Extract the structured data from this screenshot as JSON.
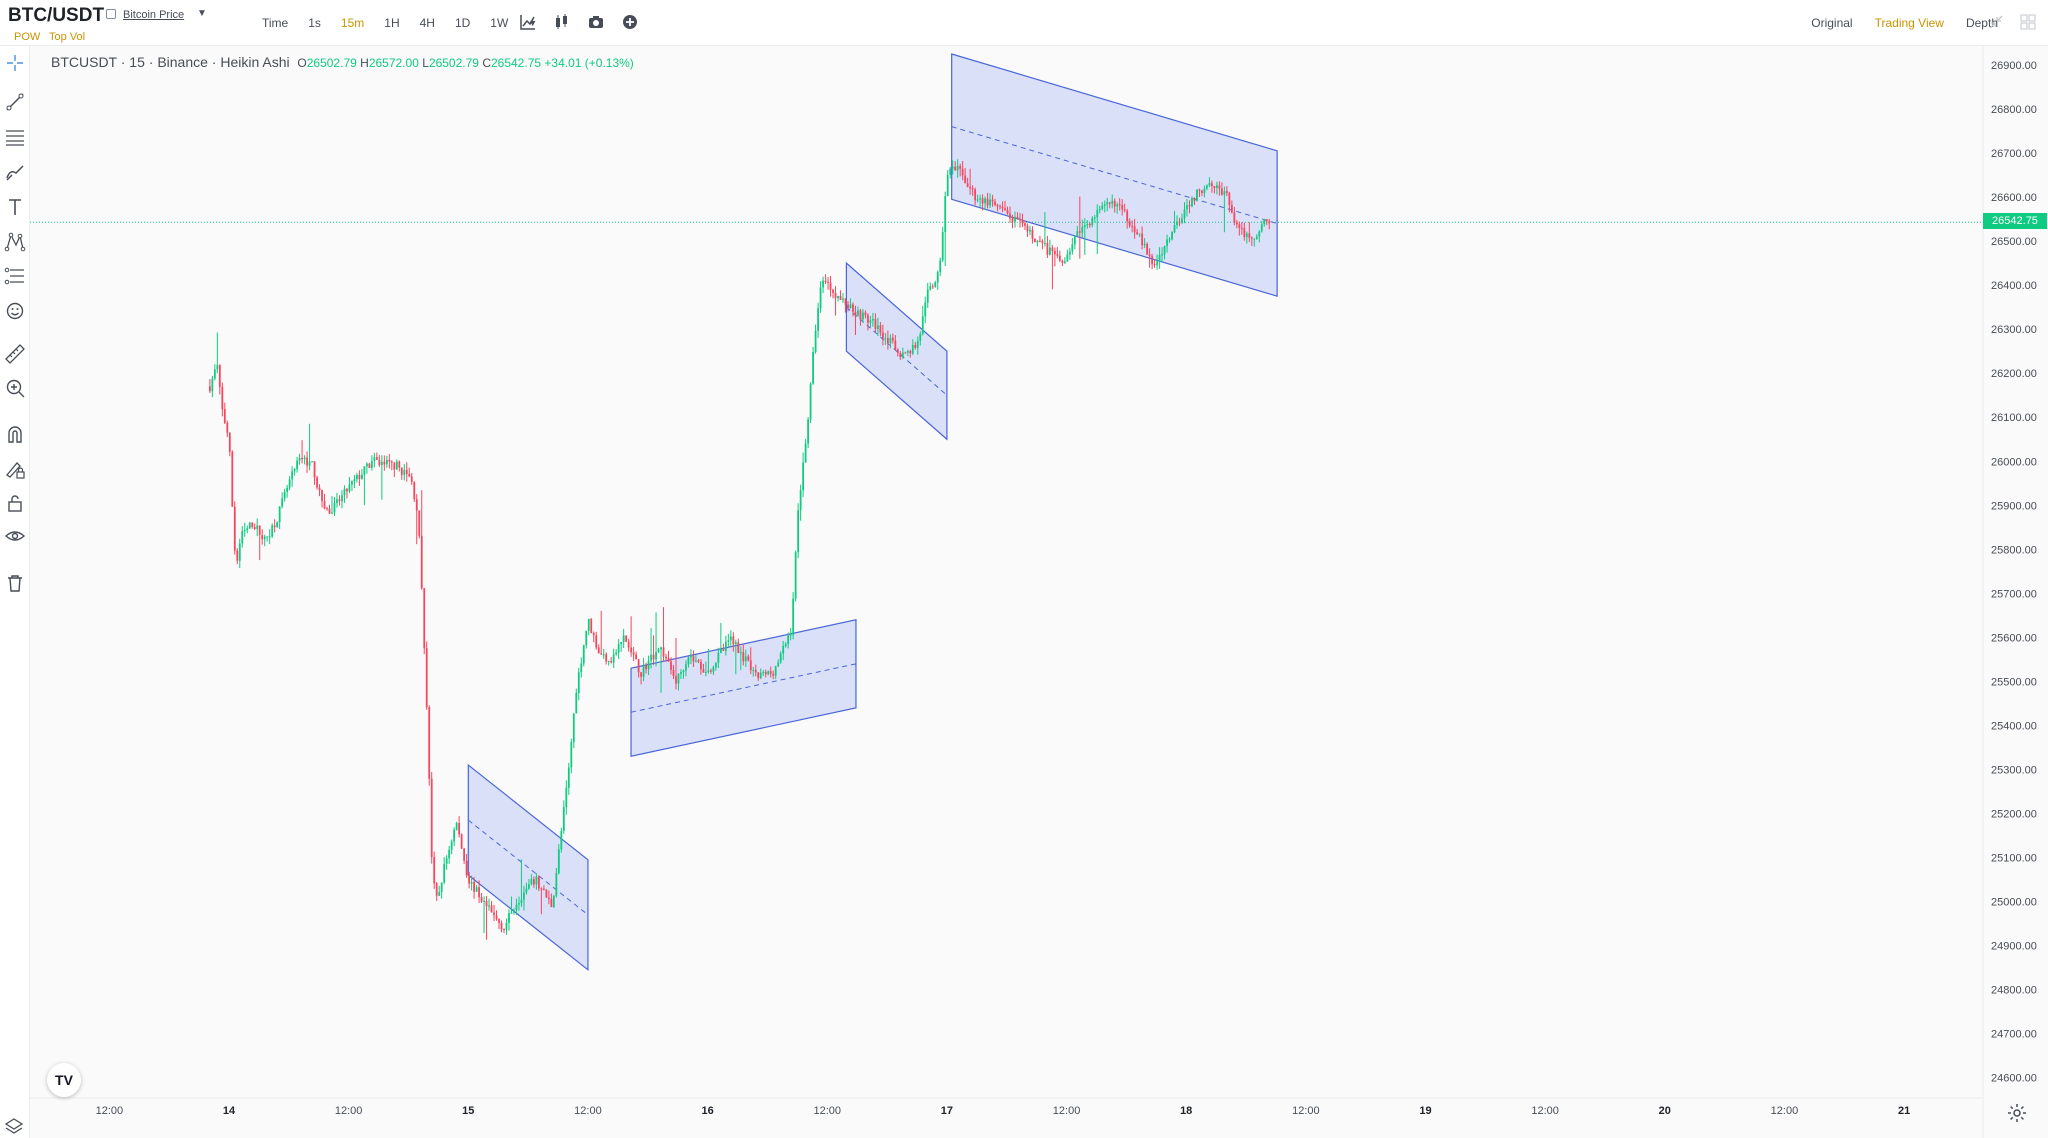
{
  "header": {
    "symbol": "BTC/USDT",
    "price_link": "Bitcoin Price",
    "tags": [
      "POW",
      "Top Vol"
    ],
    "timeframes": [
      "Time",
      "1s",
      "15m",
      "1H",
      "4H",
      "1D",
      "1W"
    ],
    "active_timeframe": "15m",
    "views": [
      "Original",
      "Trading View",
      "Depth"
    ],
    "active_view": "Trading View"
  },
  "legend": {
    "title": "BTCUSDT · 15 · Binance · Heikin Ashi",
    "o_label": "O",
    "o": "26502.79",
    "h_label": "H",
    "h": "26572.00",
    "l_label": "L",
    "l": "26502.79",
    "c_label": "C",
    "c": "26542.75",
    "change": "+34.01 (+0.13%)"
  },
  "colors": {
    "up": "#0ecb81",
    "down": "#f6465d",
    "accent": "#c99400",
    "channel": "#4a66d8"
  },
  "icons": [
    "crosshair-icon",
    "trendline-icon",
    "horizontal-lines-icon",
    "brush-icon",
    "text-icon",
    "pattern-icon",
    "fib-icon",
    "emoji-icon",
    "ruler-icon",
    "zoom-in-icon",
    "magnet-icon",
    "lock-drawing-icon",
    "lock-icon",
    "eye-icon",
    "trash-icon",
    "settings-icon",
    "layers-icon"
  ],
  "current_price": "26542.75",
  "chart_data": {
    "type": "candlestick",
    "chart_style": "Heikin Ashi",
    "interval": "15m",
    "y_ticks": [
      "26900.00",
      "26800.00",
      "26700.00",
      "26600.00",
      "26500.00",
      "26400.00",
      "26300.00",
      "26200.00",
      "26100.00",
      "26000.00",
      "25900.00",
      "25800.00",
      "25700.00",
      "25600.00",
      "25500.00",
      "25400.00",
      "25300.00",
      "25200.00",
      "25100.00",
      "25000.00",
      "24900.00",
      "24800.00",
      "24700.00",
      "24600.00"
    ],
    "x_ticks": [
      "12:00",
      "14",
      "12:00",
      "15",
      "12:00",
      "16",
      "12:00",
      "17",
      "12:00",
      "18",
      "12:00",
      "19",
      "12:00",
      "20",
      "12:00",
      "21"
    ],
    "ylim": [
      24550,
      26960
    ],
    "price_path": [
      [
        13.92,
        26170
      ],
      [
        13.95,
        26220
      ],
      [
        13.97,
        26120
      ],
      [
        14.0,
        26050
      ],
      [
        14.02,
        25830
      ],
      [
        14.03,
        25760
      ],
      [
        14.05,
        25830
      ],
      [
        14.1,
        25860
      ],
      [
        14.15,
        25820
      ],
      [
        14.2,
        25870
      ],
      [
        14.25,
        25950
      ],
      [
        14.3,
        26010
      ],
      [
        14.35,
        25990
      ],
      [
        14.38,
        25920
      ],
      [
        14.42,
        25880
      ],
      [
        14.5,
        25940
      ],
      [
        14.6,
        26000
      ],
      [
        14.7,
        25990
      ],
      [
        14.76,
        25960
      ],
      [
        14.79,
        25880
      ],
      [
        14.81,
        25650
      ],
      [
        14.83,
        25400
      ],
      [
        14.85,
        25050
      ],
      [
        14.87,
        25000
      ],
      [
        14.9,
        25080
      ],
      [
        14.95,
        25180
      ],
      [
        15.0,
        25050
      ],
      [
        15.1,
        24970
      ],
      [
        15.15,
        24940
      ],
      [
        15.2,
        25000
      ],
      [
        15.28,
        25050
      ],
      [
        15.35,
        24990
      ],
      [
        15.38,
        25120
      ],
      [
        15.42,
        25300
      ],
      [
        15.45,
        25480
      ],
      [
        15.5,
        25640
      ],
      [
        15.55,
        25560
      ],
      [
        15.6,
        25550
      ],
      [
        15.65,
        25600
      ],
      [
        15.72,
        25520
      ],
      [
        15.8,
        25580
      ],
      [
        15.87,
        25500
      ],
      [
        15.92,
        25560
      ],
      [
        16.0,
        25520
      ],
      [
        16.05,
        25560
      ],
      [
        16.1,
        25600
      ],
      [
        16.2,
        25510
      ],
      [
        16.27,
        25520
      ],
      [
        16.3,
        25550
      ],
      [
        16.35,
        25620
      ],
      [
        16.38,
        25900
      ],
      [
        16.42,
        26100
      ],
      [
        16.45,
        26300
      ],
      [
        16.48,
        26420
      ],
      [
        16.55,
        26370
      ],
      [
        16.62,
        26340
      ],
      [
        16.7,
        26310
      ],
      [
        16.78,
        26260
      ],
      [
        16.82,
        26240
      ],
      [
        16.88,
        26270
      ],
      [
        16.92,
        26380
      ],
      [
        16.97,
        26430
      ],
      [
        17.0,
        26660
      ],
      [
        17.05,
        26660
      ],
      [
        17.12,
        26600
      ],
      [
        17.2,
        26580
      ],
      [
        17.3,
        26540
      ],
      [
        17.4,
        26490
      ],
      [
        17.48,
        26450
      ],
      [
        17.55,
        26520
      ],
      [
        17.62,
        26560
      ],
      [
        17.7,
        26590
      ],
      [
        17.8,
        26520
      ],
      [
        17.86,
        26440
      ],
      [
        17.92,
        26500
      ],
      [
        18.0,
        26580
      ],
      [
        18.05,
        26610
      ],
      [
        18.1,
        26640
      ],
      [
        18.17,
        26600
      ],
      [
        18.22,
        26520
      ],
      [
        18.3,
        26510
      ],
      [
        18.33,
        26560
      ],
      [
        18.35,
        26542.75
      ]
    ],
    "channels": [
      {
        "start": [
          15.0,
          25185
        ],
        "end": [
          15.5,
          24970
        ],
        "width": 250
      },
      {
        "start": [
          15.68,
          25430
        ],
        "end": [
          16.62,
          25540
        ],
        "width": 200
      },
      {
        "start": [
          16.58,
          26350
        ],
        "end": [
          17.0,
          26150
        ],
        "width": 200
      },
      {
        "start": [
          17.02,
          26760
        ],
        "end": [
          18.38,
          26540
        ],
        "width": 330
      }
    ]
  }
}
